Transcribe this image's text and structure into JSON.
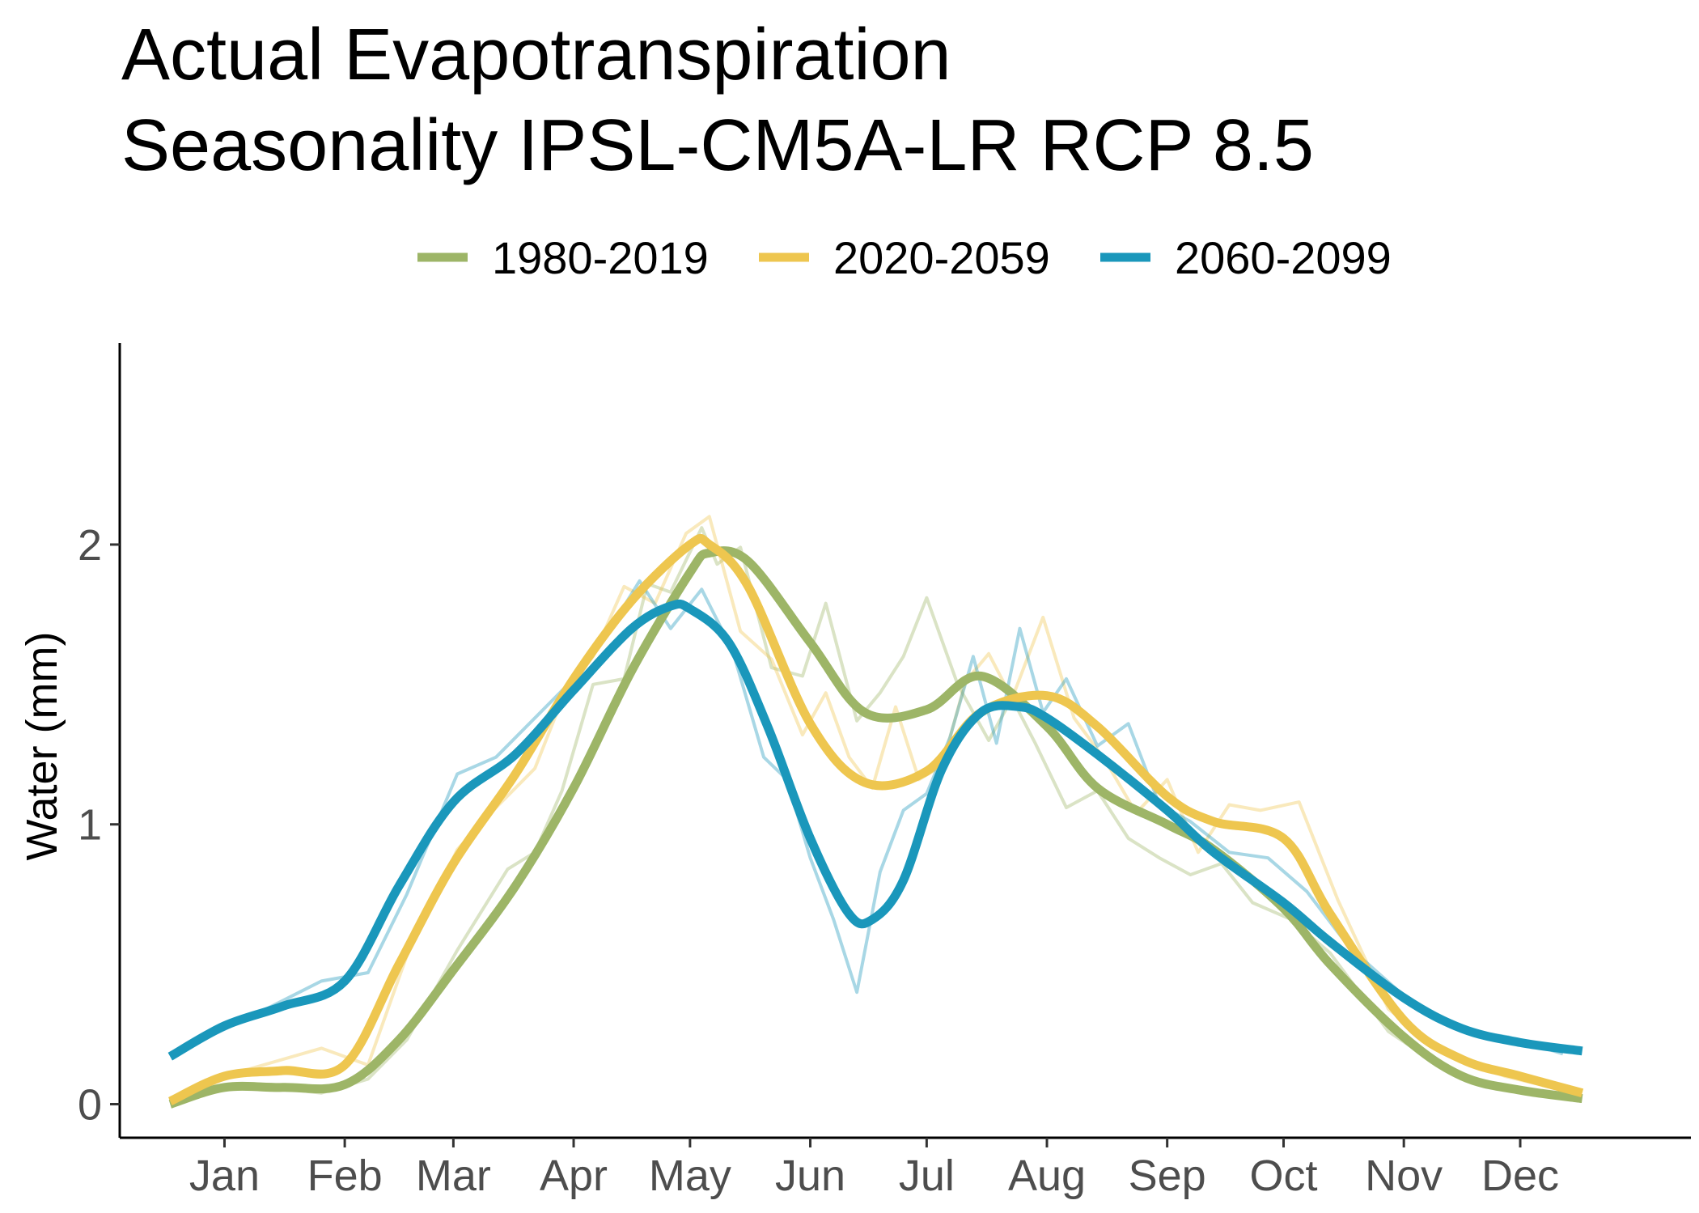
{
  "chart_data": {
    "type": "line",
    "title": [
      "Actual Evapotranspiration",
      "Seasonality IPSL-CM5A-LR RCP 8.5"
    ],
    "xlabel": "",
    "ylabel": "Water (mm)",
    "x_tick_labels": [
      "Jan",
      "Feb",
      "Mar",
      "Apr",
      "May",
      "Jun",
      "Jul",
      "Aug",
      "Sep",
      "Oct",
      "Nov",
      "Dec"
    ],
    "x_tick_days": [
      15,
      46,
      74,
      105,
      135,
      166,
      196,
      227,
      258,
      288,
      319,
      349
    ],
    "y_ticks": [
      0,
      1,
      2
    ],
    "ylim": [
      -0.12,
      2.72
    ],
    "xlim": [
      -12,
      393
    ],
    "grid": false,
    "legend_position": "top",
    "series": [
      {
        "name": "1980-2019",
        "color": "#9db567",
        "smooth": {
          "day": [
            1,
            15,
            30,
            46,
            60,
            74,
            90,
            105,
            120,
            135,
            140,
            150,
            166,
            180,
            196,
            210,
            227,
            240,
            258,
            270,
            288,
            300,
            319,
            334,
            349,
            365
          ],
          "value": [
            0.0,
            0.06,
            0.06,
            0.07,
            0.23,
            0.48,
            0.78,
            1.13,
            1.55,
            1.9,
            1.97,
            1.94,
            1.65,
            1.4,
            1.41,
            1.53,
            1.35,
            1.13,
            1.0,
            0.91,
            0.7,
            0.5,
            0.24,
            0.1,
            0.05,
            0.02
          ]
        },
        "raw": {
          "day": [
            3,
            20,
            40,
            52,
            62,
            75,
            88,
            95,
            102,
            110,
            118,
            124,
            130,
            138,
            142,
            148,
            156,
            164,
            170,
            178,
            184,
            190,
            196,
            204,
            212,
            218,
            224,
            232,
            240,
            248,
            256,
            264,
            272,
            280,
            290,
            300,
            315,
            330,
            345,
            360
          ],
          "value": [
            0.02,
            0.07,
            0.04,
            0.09,
            0.23,
            0.55,
            0.84,
            0.9,
            1.12,
            1.5,
            1.52,
            1.86,
            1.83,
            2.06,
            1.93,
            1.99,
            1.56,
            1.53,
            1.79,
            1.37,
            1.47,
            1.6,
            1.81,
            1.5,
            1.3,
            1.45,
            1.29,
            1.06,
            1.12,
            0.95,
            0.88,
            0.82,
            0.86,
            0.72,
            0.66,
            0.54,
            0.26,
            0.12,
            0.06,
            0.02
          ]
        }
      },
      {
        "name": "2020-2059",
        "color": "#eec64f",
        "smooth": {
          "day": [
            1,
            15,
            30,
            46,
            60,
            74,
            90,
            105,
            120,
            135,
            140,
            150,
            166,
            180,
            196,
            210,
            227,
            240,
            258,
            270,
            288,
            300,
            319,
            334,
            349,
            365
          ],
          "value": [
            0.01,
            0.1,
            0.12,
            0.14,
            0.5,
            0.86,
            1.18,
            1.52,
            1.8,
            2.0,
            2.0,
            1.85,
            1.36,
            1.15,
            1.19,
            1.4,
            1.46,
            1.35,
            1.1,
            1.01,
            0.95,
            0.68,
            0.3,
            0.16,
            0.1,
            0.04
          ]
        },
        "raw": {
          "day": [
            3,
            20,
            40,
            52,
            62,
            75,
            85,
            95,
            103,
            110,
            118,
            126,
            134,
            140,
            148,
            156,
            164,
            170,
            176,
            182,
            188,
            194,
            200,
            206,
            212,
            218,
            226,
            234,
            242,
            250,
            258,
            266,
            274,
            282,
            292,
            302,
            315,
            330,
            345,
            360
          ],
          "value": [
            0.02,
            0.12,
            0.2,
            0.14,
            0.53,
            0.91,
            1.06,
            1.2,
            1.48,
            1.6,
            1.85,
            1.79,
            2.04,
            2.1,
            1.69,
            1.59,
            1.32,
            1.47,
            1.24,
            1.13,
            1.42,
            1.16,
            1.21,
            1.51,
            1.61,
            1.45,
            1.74,
            1.38,
            1.23,
            1.04,
            1.16,
            0.9,
            1.07,
            1.05,
            1.08,
            0.73,
            0.34,
            0.18,
            0.1,
            0.05
          ]
        }
      },
      {
        "name": "2060-2099",
        "color": "#1a97bb",
        "smooth": {
          "day": [
            1,
            15,
            30,
            46,
            60,
            74,
            90,
            105,
            120,
            130,
            135,
            145,
            155,
            166,
            176,
            182,
            190,
            200,
            210,
            220,
            227,
            240,
            258,
            270,
            288,
            300,
            319,
            334,
            349,
            365
          ],
          "value": [
            0.17,
            0.28,
            0.35,
            0.44,
            0.78,
            1.08,
            1.25,
            1.48,
            1.7,
            1.78,
            1.77,
            1.65,
            1.35,
            0.95,
            0.68,
            0.66,
            0.8,
            1.2,
            1.4,
            1.42,
            1.38,
            1.25,
            1.05,
            0.9,
            0.72,
            0.58,
            0.38,
            0.27,
            0.22,
            0.19
          ]
        },
        "raw": {
          "day": [
            3,
            20,
            40,
            52,
            62,
            75,
            85,
            95,
            105,
            114,
            122,
            130,
            138,
            146,
            154,
            160,
            166,
            172,
            178,
            184,
            190,
            196,
            202,
            208,
            214,
            220,
            226,
            232,
            240,
            248,
            256,
            264,
            274,
            284,
            294,
            305,
            318,
            332,
            346,
            360
          ],
          "value": [
            0.19,
            0.3,
            0.44,
            0.47,
            0.75,
            1.18,
            1.24,
            1.38,
            1.52,
            1.69,
            1.87,
            1.7,
            1.84,
            1.62,
            1.24,
            1.16,
            0.88,
            0.66,
            0.4,
            0.83,
            1.05,
            1.11,
            1.31,
            1.6,
            1.29,
            1.7,
            1.4,
            1.52,
            1.28,
            1.36,
            1.07,
            1.01,
            0.9,
            0.88,
            0.76,
            0.56,
            0.4,
            0.27,
            0.24,
            0.18
          ]
        }
      }
    ]
  }
}
